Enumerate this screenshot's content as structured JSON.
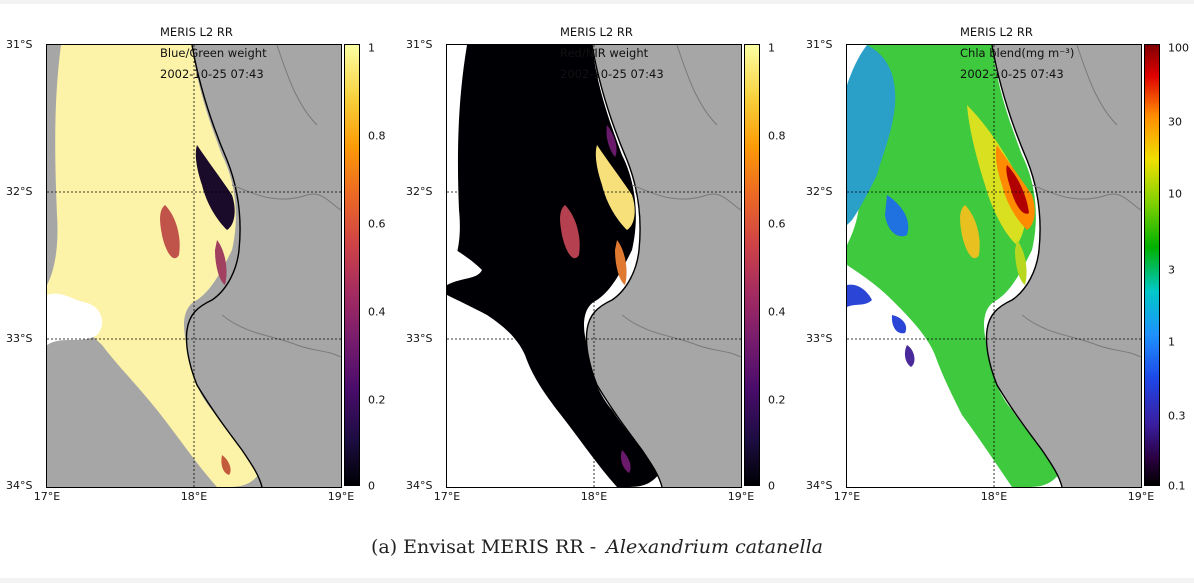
{
  "figure": {
    "caption_prefix": "(a) Envisat MERIS RR - ",
    "caption_species": "Alexandrium catanella"
  },
  "panels": [
    {
      "id": "blue-green",
      "label_line1": "MERIS L2 RR",
      "label_line2": "Blue/Green weight",
      "label_line3": "2002-10-25 07:43",
      "colormap": "inferno",
      "colorbar_ticks": [
        "1",
        "0.8",
        "0.6",
        "0.4",
        "0.2",
        "0"
      ]
    },
    {
      "id": "red-nir",
      "label_line1": "MERIS L2 RR",
      "label_line2": "Red/NIR weight",
      "label_line3": "2002-10-25 07:43",
      "colormap": "inferno",
      "colorbar_ticks": [
        "1",
        "0.8",
        "0.6",
        "0.4",
        "0.2",
        "0"
      ]
    },
    {
      "id": "chla",
      "label_line1": "MERIS L2 RR",
      "label_line2": "Chla blend(mg m⁻³)",
      "label_line3": "2002-10-25 07:43",
      "colormap": "jet (log)",
      "colorbar_ticks": [
        "100",
        "30",
        "10",
        "3",
        "1",
        "0.3",
        "0.1"
      ]
    }
  ],
  "axes": {
    "lat_ticks": [
      "31°S",
      "32°S",
      "33°S",
      "34°S"
    ],
    "lon_ticks": [
      "17°E",
      "18°E",
      "19°E"
    ]
  },
  "colors": {
    "land": "#a6a6a6",
    "no_data": "#ffffff",
    "coastline": "#000000",
    "rivers": "#7a7a7a"
  }
}
